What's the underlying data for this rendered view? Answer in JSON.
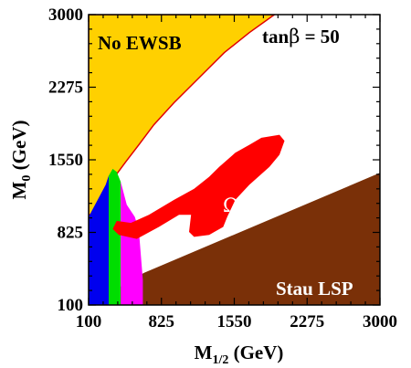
{
  "chart_data": {
    "type": "area",
    "title": "",
    "xlabel": "M",
    "xlabel_sub": "1/2",
    "xlabel_unit": " (GeV)",
    "ylabel": "M",
    "ylabel_sub": "0",
    "ylabel_unit": " (GeV)",
    "xlim": [
      100,
      3000
    ],
    "ylim": [
      100,
      3000
    ],
    "xticks": [
      100,
      825,
      1550,
      2275,
      3000
    ],
    "yticks": [
      100,
      825,
      1550,
      2275,
      3000
    ],
    "annotation": {
      "text_main": "tan",
      "text_symbol": "β",
      "text_value": " = 50"
    },
    "grid": false,
    "regions": [
      {
        "label": "No EWSB",
        "color": "#FFD000",
        "border": "#E00000",
        "polygon": [
          [
            100,
            3000
          ],
          [
            1950,
            3000
          ],
          [
            1700,
            2820
          ],
          [
            1450,
            2620
          ],
          [
            1250,
            2420
          ],
          [
            950,
            2120
          ],
          [
            750,
            1900
          ],
          [
            600,
            1700
          ],
          [
            470,
            1530
          ],
          [
            300,
            1300
          ],
          [
            280,
            1050
          ],
          [
            100,
            1000
          ]
        ]
      },
      {
        "label": "Stau LSP",
        "color": "#7A3008",
        "polygon": [
          [
            100,
            100
          ],
          [
            3000,
            100
          ],
          [
            3000,
            1420
          ],
          [
            650,
            420
          ],
          [
            100,
            100
          ]
        ]
      },
      {
        "label": "",
        "color": "#0000EE",
        "polygon": [
          [
            100,
            100
          ],
          [
            300,
            100
          ],
          [
            300,
            1390
          ],
          [
            270,
            1300
          ],
          [
            100,
            980
          ]
        ]
      },
      {
        "label": "",
        "color": "#00DD00",
        "polygon": [
          [
            300,
            100
          ],
          [
            420,
            100
          ],
          [
            420,
            1330
          ],
          [
            380,
            1430
          ],
          [
            340,
            1460
          ],
          [
            300,
            1390
          ]
        ]
      },
      {
        "label": "",
        "color": "#FF00FF",
        "polygon": [
          [
            420,
            100
          ],
          [
            640,
            100
          ],
          [
            640,
            350
          ],
          [
            600,
            850
          ],
          [
            560,
            980
          ],
          [
            480,
            1100
          ],
          [
            420,
            1330
          ]
        ]
      },
      {
        "label": "Ω",
        "color": "#FF0000",
        "polygon": [
          [
            380,
            940
          ],
          [
            520,
            920
          ],
          [
            700,
            1000
          ],
          [
            950,
            1150
          ],
          [
            1150,
            1260
          ],
          [
            1300,
            1380
          ],
          [
            1400,
            1480
          ],
          [
            1560,
            1620
          ],
          [
            1700,
            1700
          ],
          [
            1820,
            1770
          ],
          [
            2000,
            1800
          ],
          [
            2050,
            1740
          ],
          [
            2000,
            1600
          ],
          [
            1900,
            1480
          ],
          [
            1700,
            1300
          ],
          [
            1560,
            1150
          ],
          [
            1480,
            980
          ],
          [
            1440,
            880
          ],
          [
            1300,
            800
          ],
          [
            1150,
            780
          ],
          [
            1100,
            830
          ],
          [
            1120,
            1000
          ],
          [
            1000,
            1000
          ],
          [
            800,
            880
          ],
          [
            580,
            760
          ],
          [
            400,
            800
          ],
          [
            340,
            860
          ]
        ]
      }
    ]
  }
}
